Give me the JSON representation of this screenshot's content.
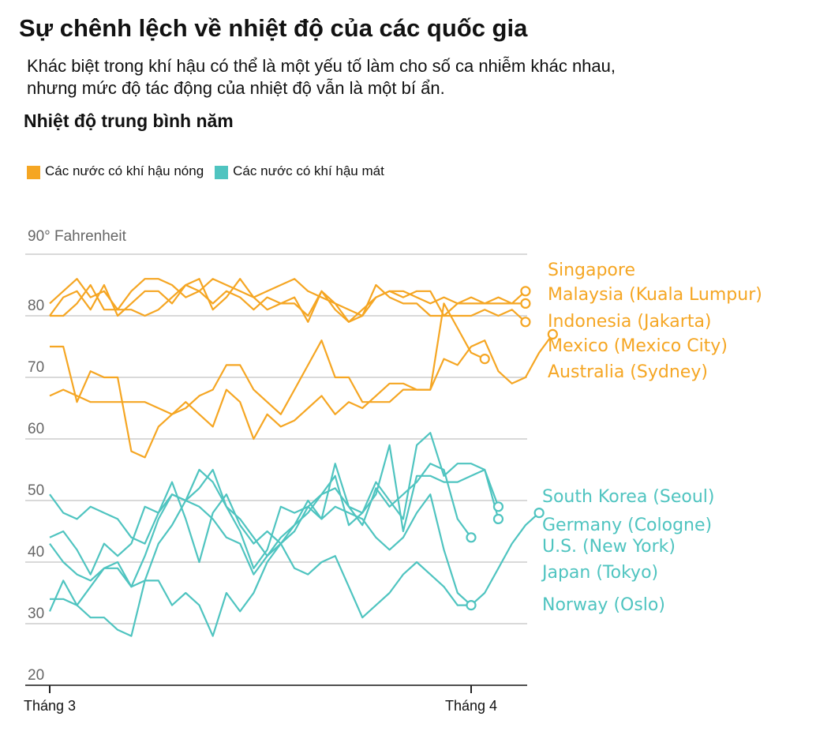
{
  "header": {
    "title": "Sự chênh lệch về nhiệt độ của các quốc gia",
    "subtitle_line1": "Khác biệt trong khí hậu có thể là một yếu tố làm cho số ca nhiễm khác nhau,",
    "subtitle_line2": "nhưng mức độ tác động của nhiệt độ vẫn là một bí ẩn.",
    "chart_heading": "Nhiệt độ trung bình năm"
  },
  "legend": {
    "hot_label": "Các nước có khí hậu nóng",
    "cool_label": "Các nước có khí hậu mát"
  },
  "colors": {
    "hot": "#F5A623",
    "cool": "#4FC4C0",
    "grid": "#d9d9d9",
    "axis": "#222222"
  },
  "chart_data": {
    "type": "line",
    "unit_label": "90° Fahrenheit",
    "ylim": [
      20,
      90
    ],
    "yticks": [
      20,
      30,
      40,
      50,
      60,
      70,
      80
    ],
    "grid": true,
    "x_ticks": [
      {
        "label": "Tháng 3",
        "day": 0
      },
      {
        "label": "Tháng 4",
        "day": 31
      }
    ],
    "x_range_days": [
      0,
      35
    ],
    "series": [
      {
        "name": "Singapore",
        "group": "hot",
        "values": [
          82,
          84,
          86,
          83,
          84,
          81,
          84,
          86,
          86,
          85,
          83,
          84,
          86,
          85,
          84,
          83,
          84,
          85,
          86,
          84,
          83,
          82,
          81,
          80,
          83,
          84,
          84,
          83,
          82,
          83,
          82,
          82,
          82,
          83,
          82,
          84
        ]
      },
      {
        "name": "Malaysia (Kuala Lumpur)",
        "group": "hot",
        "values": [
          80,
          83,
          84,
          81,
          85,
          80,
          82,
          84,
          84,
          82,
          85,
          86,
          81,
          83,
          86,
          83,
          81,
          82,
          82,
          80,
          84,
          81,
          79,
          80,
          85,
          83,
          82,
          82,
          80,
          80,
          82,
          83,
          82,
          82,
          82,
          82
        ]
      },
      {
        "name": "Indonesia (Jakarta)",
        "group": "hot",
        "values": [
          80,
          80,
          82,
          85,
          81,
          81,
          81,
          80,
          81,
          83,
          85,
          84,
          82,
          84,
          83,
          81,
          83,
          82,
          83,
          79,
          84,
          82,
          79,
          81,
          83,
          84,
          83,
          84,
          84,
          80,
          80,
          80,
          81,
          80,
          81,
          79
        ]
      },
      {
        "name": "Mexico (Mexico City)",
        "group": "hot",
        "values": [
          75,
          75,
          66,
          71,
          70,
          70,
          58,
          57,
          62,
          64,
          66,
          64,
          62,
          68,
          66,
          60,
          64,
          62,
          63,
          65,
          67,
          64,
          66,
          65,
          67,
          69,
          69,
          68,
          68,
          73,
          72,
          75,
          76,
          71,
          69,
          70,
          74,
          77
        ]
      },
      {
        "name": "Australia (Sydney)",
        "group": "hot",
        "values": [
          67,
          68,
          67,
          66,
          66,
          66,
          66,
          66,
          65,
          64,
          65,
          67,
          68,
          72,
          72,
          68,
          66,
          64,
          68,
          72,
          76,
          70,
          70,
          66,
          66,
          66,
          68,
          68,
          68,
          82,
          78,
          74,
          73
        ]
      },
      {
        "name": "South Korea (Seoul)",
        "group": "cool",
        "values": [
          44,
          45,
          42,
          38,
          43,
          41,
          43,
          49,
          48,
          53,
          47,
          40,
          48,
          51,
          46,
          43,
          45,
          43,
          45,
          49,
          51,
          54,
          46,
          48,
          53,
          50,
          47,
          59,
          61,
          54,
          56,
          56,
          55,
          47
        ]
      },
      {
        "name": "Germany (Cologne)",
        "group": "cool",
        "values": [
          51,
          48,
          47,
          49,
          48,
          47,
          44,
          43,
          48,
          51,
          50,
          52,
          55,
          49,
          47,
          44,
          41,
          44,
          46,
          48,
          51,
          52,
          49,
          48,
          51,
          59,
          45,
          54,
          54,
          53,
          53,
          54,
          55,
          49
        ]
      },
      {
        "name": "U.S. (New York)",
        "group": "cool",
        "values": [
          43,
          40,
          38,
          37,
          39,
          39,
          36,
          41,
          47,
          51,
          50,
          55,
          53,
          49,
          45,
          39,
          42,
          49,
          48,
          49,
          47,
          56,
          49,
          46,
          52,
          49,
          51,
          53,
          56,
          55,
          47,
          44
        ]
      },
      {
        "name": "Japan (Tokyo)",
        "group": "cool",
        "values": [
          32,
          37,
          33,
          36,
          39,
          40,
          36,
          37,
          43,
          46,
          50,
          49,
          47,
          44,
          43,
          38,
          41,
          43,
          46,
          50,
          47,
          49,
          48,
          47,
          44,
          42,
          44,
          48,
          51,
          42,
          35,
          33,
          35,
          39,
          43,
          46,
          48
        ]
      },
      {
        "name": "Norway (Oslo)",
        "group": "cool",
        "values": [
          34,
          34,
          33,
          31,
          31,
          29,
          28,
          37,
          37,
          33,
          35,
          33,
          28,
          35,
          32,
          35,
          40,
          43,
          39,
          38,
          40,
          41,
          36,
          31,
          33,
          35,
          38,
          40,
          38,
          36,
          33,
          33
        ]
      }
    ]
  }
}
